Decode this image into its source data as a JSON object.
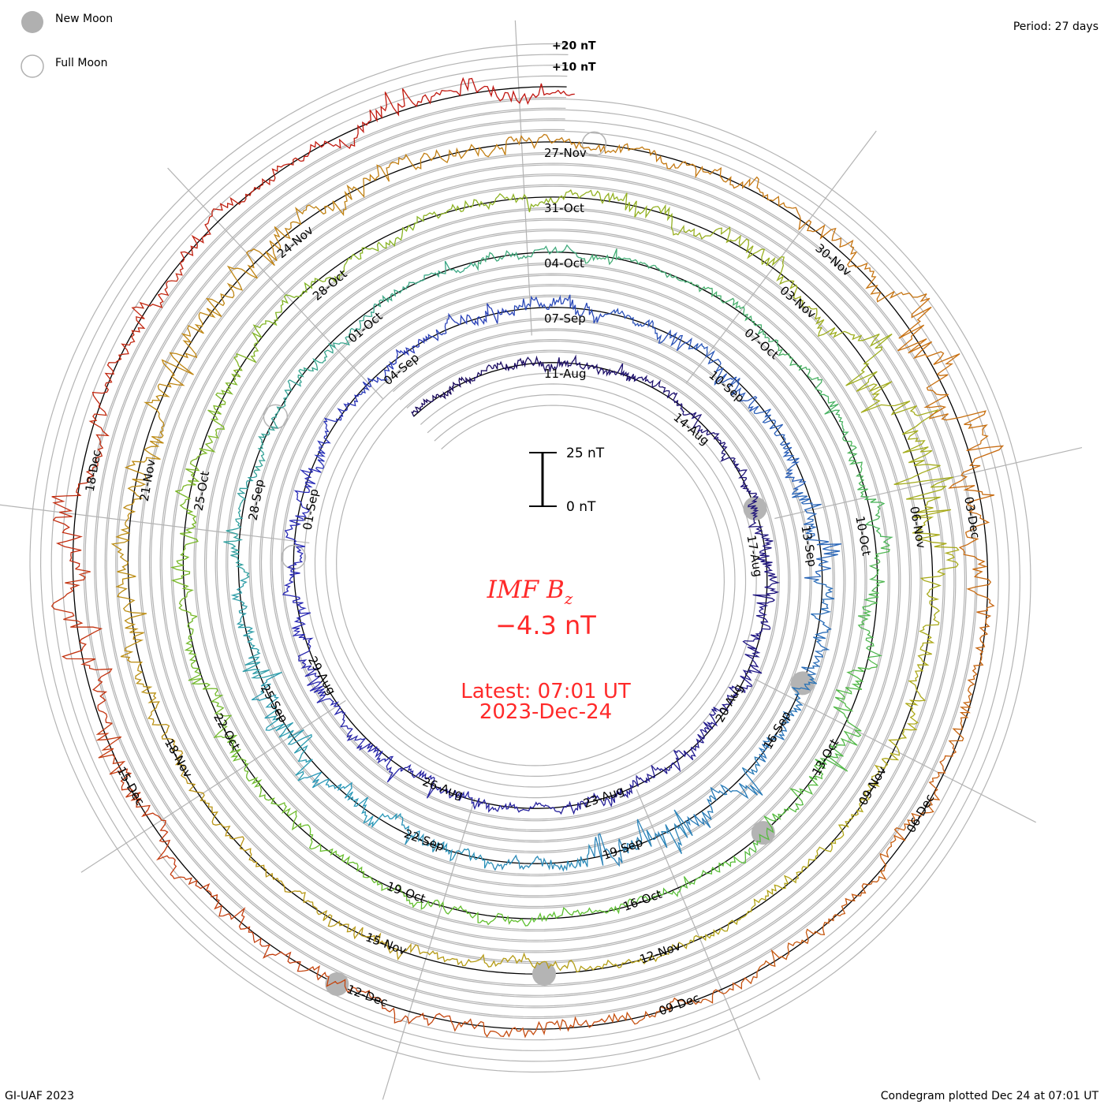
{
  "chart_data": {
    "type": "line",
    "subtype": "spiral-condegram",
    "title": "IMF B",
    "title_subscript": "z",
    "current_value": "−4.3 nT",
    "latest_line": "Latest: 07:01 UT",
    "latest_date": "2023-Dec-24",
    "period_label": "Period: 27 days",
    "period_days": 27,
    "start_date": "2023-08-08",
    "end_date": "2023-12-24T07:01",
    "scale_bar": {
      "top_label": "25 nT",
      "bottom_label": "0 nT",
      "value_nT": 25
    },
    "grid_labels": [
      "+20 nT",
      "+10 nT"
    ],
    "grid_step_nT": 5,
    "legend": {
      "new_moon": "New Moon",
      "full_moon": "Full Moon"
    },
    "new_moons": [
      "2023-08-16",
      "2023-09-15",
      "2023-10-14",
      "2023-11-13",
      "2023-12-12"
    ],
    "full_moons": [
      "2023-08-31",
      "2023-09-29",
      "2023-11-27"
    ],
    "date_labels": [
      "11-Aug",
      "14-Aug",
      "17-Aug",
      "20-Aug",
      "23-Aug",
      "26-Aug",
      "29-Aug",
      "01-Sep",
      "04-Sep",
      "07-Sep",
      "10-Sep",
      "13-Sep",
      "16-Sep",
      "19-Sep",
      "22-Sep",
      "25-Sep",
      "28-Sep",
      "01-Oct",
      "04-Oct",
      "07-Oct",
      "10-Oct",
      "13-Oct",
      "16-Oct",
      "19-Oct",
      "22-Oct",
      "25-Oct",
      "28-Oct",
      "31-Oct",
      "03-Nov",
      "06-Nov",
      "09-Nov",
      "12-Nov",
      "15-Nov",
      "18-Nov",
      "21-Nov",
      "24-Nov",
      "27-Nov",
      "30-Nov",
      "03-Dec",
      "06-Dec",
      "09-Dec",
      "12-Dec",
      "15-Dec",
      "18-Dec"
    ],
    "color_stops": [
      "#1a0a5c",
      "#2a2ab8",
      "#2a9ab8",
      "#5cc030",
      "#b0a818",
      "#c87010",
      "#c01010"
    ],
    "daily_bz_mean": [
      0,
      0,
      0,
      0,
      0,
      1,
      0,
      0,
      0,
      1,
      0,
      0,
      0,
      0,
      0,
      0,
      0,
      0,
      0,
      0,
      0,
      0,
      1,
      0,
      0,
      0,
      0,
      0,
      0,
      0,
      0,
      1,
      0,
      0,
      0,
      0,
      0,
      0,
      0,
      0,
      -1,
      0,
      0,
      0,
      0,
      0,
      0,
      -2,
      0,
      0,
      0,
      0,
      0,
      0,
      0,
      0,
      0,
      0,
      0,
      0,
      0,
      0,
      0,
      0,
      0,
      1,
      0,
      0,
      0,
      0,
      0,
      0,
      0,
      0,
      0,
      0,
      0,
      0,
      0,
      0,
      0,
      0,
      0,
      0,
      0,
      0,
      0,
      0,
      2,
      1,
      0,
      0,
      1,
      0,
      0,
      0,
      -1,
      -4,
      -3,
      0,
      0,
      0,
      0,
      0,
      0,
      0,
      1,
      1,
      0,
      0,
      0,
      0,
      0,
      0,
      0,
      1,
      1,
      0,
      0,
      0,
      0,
      0,
      0,
      0,
      0,
      0,
      0,
      0,
      0,
      1,
      0,
      0,
      0,
      0,
      0,
      0,
      0,
      0,
      -1
    ],
    "daily_bz_spread": [
      3,
      3,
      3,
      4,
      4,
      3,
      3,
      3,
      4,
      5,
      5,
      6,
      6,
      5,
      4,
      4,
      3,
      3,
      4,
      5,
      4,
      6,
      6,
      5,
      5,
      4,
      4,
      4,
      4,
      6,
      5,
      3,
      5,
      6,
      5,
      7,
      8,
      6,
      5,
      5,
      8,
      12,
      8,
      4,
      4,
      4,
      7,
      12,
      7,
      5,
      4,
      3,
      3,
      4,
      3,
      3,
      3,
      3,
      2,
      3,
      4,
      4,
      5,
      6,
      5,
      9,
      8,
      4,
      3,
      3,
      3,
      4,
      3,
      4,
      5,
      5,
      4,
      5,
      6,
      7,
      5,
      4,
      4,
      4,
      4,
      5,
      7,
      6,
      14,
      16,
      10,
      7,
      6,
      4,
      4,
      3,
      3,
      4,
      4,
      4,
      3,
      4,
      5,
      6,
      7,
      8,
      9,
      10,
      9,
      6,
      5,
      4,
      4,
      5,
      8,
      16,
      14,
      8,
      6,
      5,
      5,
      4,
      4,
      4,
      5,
      5,
      4,
      5,
      6,
      9,
      10,
      8,
      6,
      5,
      5,
      4,
      6,
      6,
      6
    ]
  },
  "footer": {
    "left": "GI-UAF 2023",
    "right": "Condegram plotted Dec 24 at 07:01 UT"
  }
}
